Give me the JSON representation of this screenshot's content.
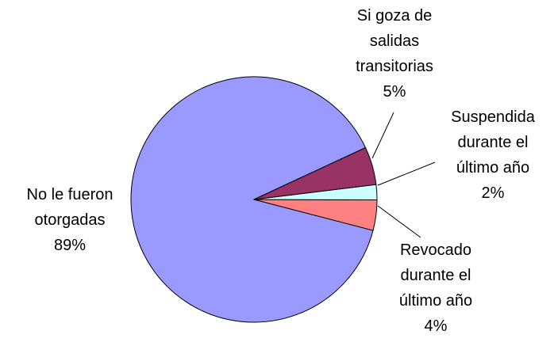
{
  "chart_data": {
    "type": "pie",
    "categories": [
      "Si goza de salidas transitorias",
      "Suspendida durante el último año",
      "Revocado durante el último año",
      "No le fueron otorgadas"
    ],
    "values": [
      5,
      2,
      4,
      89
    ],
    "value_labels": [
      "5%",
      "2%",
      "4%",
      "89%"
    ],
    "colors": [
      "#993366",
      "#ccffff",
      "#ff8080",
      "#9999ff"
    ]
  }
}
